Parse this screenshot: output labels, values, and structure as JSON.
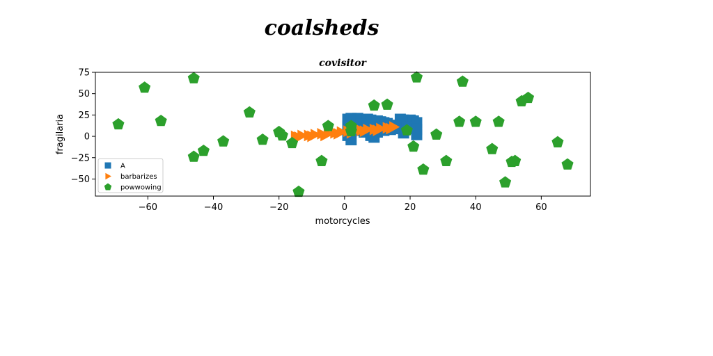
{
  "figure": {
    "suptitle": "coalsheds"
  },
  "chart_data": {
    "type": "scatter",
    "title": "covisitor",
    "xlabel": "motorcycles",
    "ylabel": "fragilaria",
    "xlim": [
      -76,
      75
    ],
    "ylim": [
      -70,
      75
    ],
    "xticks": [
      -60,
      -40,
      -20,
      0,
      20,
      40,
      60
    ],
    "yticks": [
      -50,
      -25,
      0,
      25,
      50,
      75
    ],
    "xtick_labels": [
      "−60",
      "−40",
      "−20",
      "0",
      "20",
      "40",
      "60"
    ],
    "ytick_labels": [
      "−50",
      "−25",
      "0",
      "25",
      "50",
      "75"
    ],
    "grid": false,
    "legend_position": "lower-left",
    "series": [
      {
        "name": "A",
        "marker": "square",
        "color": "#1f77b4",
        "x": [
          1,
          2,
          3,
          4,
          5,
          6,
          7,
          8,
          9,
          10,
          11,
          12,
          13,
          1,
          3,
          5,
          7,
          9,
          11,
          2,
          4,
          6,
          8,
          10,
          12,
          1,
          2,
          8,
          9,
          17,
          18,
          20,
          21,
          22,
          16,
          17,
          19,
          20,
          21,
          22,
          18,
          22,
          15,
          14
        ],
        "y": [
          20,
          21,
          20,
          21,
          20,
          19,
          20,
          19,
          18,
          18,
          17,
          16,
          15,
          12,
          13,
          14,
          12,
          13,
          11,
          6,
          7,
          5,
          6,
          5,
          7,
          1,
          -4,
          1,
          -1,
          20,
          19,
          19,
          18,
          16,
          13,
          12,
          11,
          10,
          9,
          8,
          4,
          2,
          9,
          8
        ]
      },
      {
        "name": "barbarizes",
        "marker": "triangle-right",
        "color": "#ff7f0e",
        "x": [
          -15,
          -13,
          -11,
          -9,
          -7,
          -5,
          -3,
          -1,
          1,
          3,
          5,
          7,
          9,
          11,
          13,
          15,
          -14,
          -10,
          -6,
          -2,
          2,
          6,
          10,
          14
        ],
        "y": [
          0,
          1,
          1,
          2,
          3,
          3,
          4,
          5,
          6,
          6,
          7,
          8,
          8,
          9,
          10,
          11,
          -1,
          0,
          1,
          3,
          4,
          6,
          7,
          9
        ]
      },
      {
        "name": "powwowing",
        "marker": "pentagon",
        "color": "#2ca02c",
        "x": [
          -46,
          -61,
          -69,
          -56,
          -46,
          -43,
          -37,
          -29,
          -25,
          -20,
          -19,
          -16,
          -14,
          -7,
          -5,
          2,
          2,
          9,
          13,
          19,
          21,
          22,
          24,
          28,
          31,
          35,
          36,
          40,
          45,
          47,
          49,
          51,
          52,
          54,
          56,
          65,
          68
        ],
        "y": [
          68,
          57,
          14,
          18,
          -24,
          -17,
          -6,
          28,
          -4,
          5,
          1,
          -8,
          -65,
          -29,
          12,
          12,
          6,
          36,
          37,
          7,
          -12,
          69,
          -39,
          2,
          -29,
          17,
          64,
          17,
          -15,
          17,
          -54,
          -30,
          -29,
          41,
          45,
          -7,
          -33
        ]
      }
    ]
  }
}
